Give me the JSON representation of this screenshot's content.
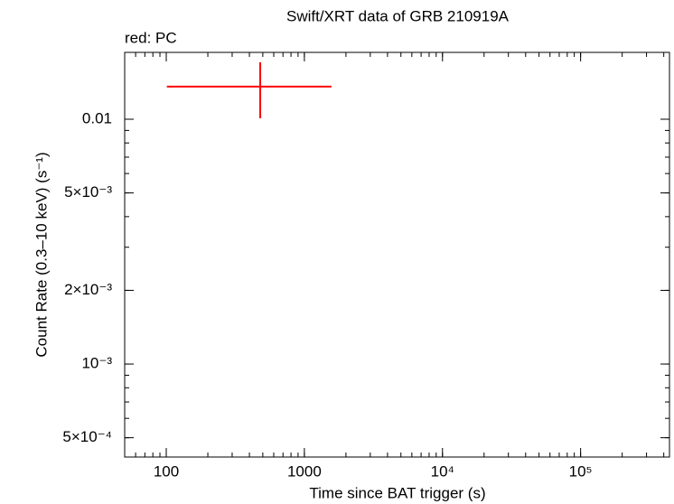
{
  "chart_data": {
    "type": "errorbar",
    "title": "Swift/XRT data of GRB 210919A",
    "subtitle": "red: PC",
    "x_label": "Time since BAT trigger (s)",
    "y_label": "Count Rate (0.3–10 keV) (s⁻¹)",
    "xscale": "log",
    "yscale": "log",
    "xlim": [
      50,
      440000
    ],
    "ylim": [
      0.000417,
      0.01875
    ],
    "xticks": [
      100,
      1000,
      {
        "value": 10000,
        "label": "10⁴"
      },
      {
        "value": 100000,
        "label": "10⁵"
      }
    ],
    "yticks": [
      {
        "value": 0.0005,
        "label": "5×10⁻⁴"
      },
      {
        "value": 0.001,
        "label": "10⁻³"
      },
      {
        "value": 0.002,
        "label": "2×10⁻³"
      },
      {
        "value": 0.005,
        "label": "5×10⁻³"
      },
      0.01
    ],
    "series": [
      {
        "name": "PC",
        "color": "#ff0000",
        "x": [
          479
        ],
        "xerr_minus": [
          378
        ],
        "xerr_plus": [
          1091
        ],
        "values": [
          0.01359
        ],
        "yerr": [
          0.0035
        ]
      }
    ]
  }
}
